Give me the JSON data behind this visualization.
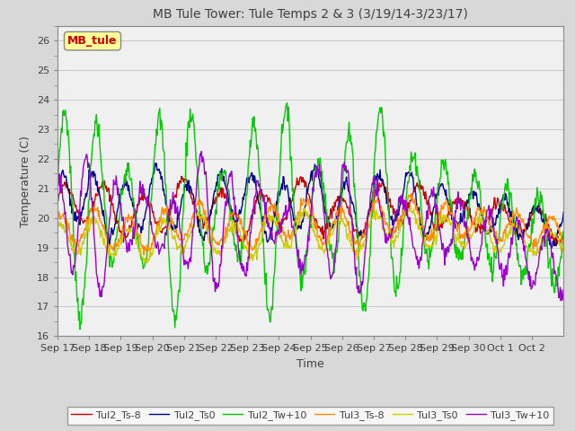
{
  "title": "MB Tule Tower: Tule Temps 2 & 3 (3/19/14-3/23/17)",
  "xlabel": "Time",
  "ylabel": "Temperature (C)",
  "ylim": [
    16.0,
    26.5
  ],
  "yticks": [
    16.0,
    17.0,
    18.0,
    19.0,
    20.0,
    21.0,
    22.0,
    23.0,
    24.0,
    25.0,
    26.0
  ],
  "background_color": "#d8d8d8",
  "plot_bg_color": "#f0f0f0",
  "legend_label": "MB_tule",
  "series_labels": [
    "Tul2_Ts-8",
    "Tul2_Ts0",
    "Tul2_Tw+10",
    "Tul3_Ts-8",
    "Tul3_Ts0",
    "Tul3_Tw+10"
  ],
  "series_colors": [
    "#cc0000",
    "#00008b",
    "#00cc00",
    "#ff8c00",
    "#cccc00",
    "#9900cc"
  ],
  "xtick_labels": [
    "Sep 17",
    "Sep 18",
    "Sep 19",
    "Sep 20",
    "Sep 21",
    "Sep 22",
    "Sep 23",
    "Sep 24",
    "Sep 25",
    "Sep 26",
    "Sep 27",
    "Sep 28",
    "Sep 29",
    "Sep 30",
    "Oct 1",
    "Oct 2"
  ],
  "title_fontsize": 10,
  "axis_fontsize": 9,
  "tick_fontsize": 8,
  "linewidth": 1.0
}
